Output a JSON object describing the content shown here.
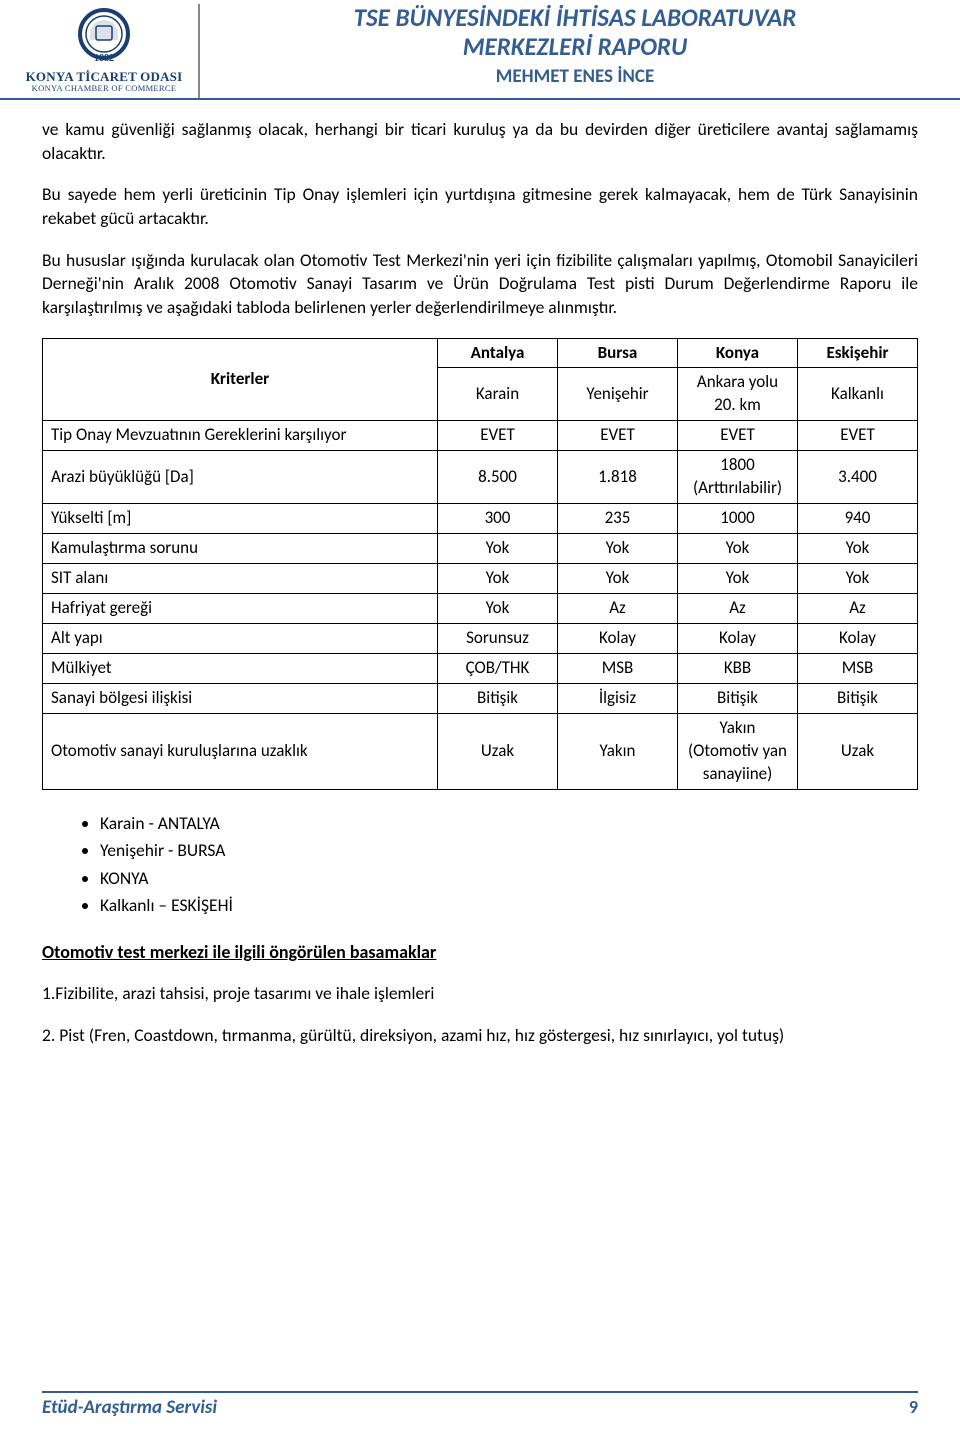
{
  "colors": {
    "accent": "#325e93",
    "text": "#000000",
    "logo_blue": "#1a3e72",
    "border_gray": "#888888",
    "background": "#ffffff"
  },
  "header": {
    "org_name": "KONYA TİCARET ODASI",
    "org_sub_en": "KONYA CHAMBER OF COMMERCE",
    "logo_year": "1882",
    "title_line1": "TSE BÜNYESİNDEKİ İHTİSAS LABORATUVAR",
    "title_line2": "MERKEZLERİ RAPORU",
    "author": "MEHMET ENES İNCE"
  },
  "paragraphs": {
    "p1": "ve kamu güvenliği sağlanmış olacak, herhangi bir ticari kuruluş ya da bu devirden diğer üreticilere avantaj sağlamamış olacaktır.",
    "p2": "Bu sayede hem yerli üreticinin Tip Onay işlemleri için yurtdışına gitmesine gerek kalmayacak, hem de Türk Sanayisinin rekabet gücü artacaktır.",
    "p3": "Bu hususlar ışığında kurulacak olan Otomotiv Test Merkezi'nin  yeri için fizibilite çalışmaları yapılmış, Otomobil Sanayicileri Derneği'nin Aralık 2008 Otomotiv Sanayi Tasarım ve Ürün Doğrulama Test pisti Durum Değerlendirme Raporu ile karşılaştırılmış ve aşağıdaki tabloda belirlenen yerler değerlendirilmeye alınmıştır."
  },
  "table": {
    "corner_label": "Kriterler",
    "cities": [
      "Antalya",
      "Bursa",
      "Konya",
      "Eskişehir"
    ],
    "subplaces": [
      "Karain",
      "Yenişehir",
      "Ankara yolu 20. km",
      "Kalkanlı"
    ],
    "col_align": [
      "center",
      "center",
      "center",
      "center"
    ],
    "rows": [
      {
        "label": "Tip Onay Mevzuatının Gereklerini karşılıyor",
        "cells": [
          "EVET",
          "EVET",
          "EVET",
          "EVET"
        ]
      },
      {
        "label": "Arazi büyüklüğü [Da]",
        "cells": [
          "8.500",
          "1.818",
          "1800 (Arttırılabilir)",
          "3.400"
        ]
      },
      {
        "label": "Yükselti [m]",
        "cells": [
          "300",
          "235",
          "1000",
          "940"
        ]
      },
      {
        "label": "Kamulaştırma sorunu",
        "cells": [
          "Yok",
          "Yok",
          "Yok",
          "Yok"
        ]
      },
      {
        "label": "SIT alanı",
        "cells": [
          "Yok",
          "Yok",
          "Yok",
          "Yok"
        ]
      },
      {
        "label": "Hafriyat gereği",
        "cells": [
          "Yok",
          "Az",
          "Az",
          "Az"
        ]
      },
      {
        "label": "Alt yapı",
        "cells": [
          "Sorunsuz",
          "Kolay",
          "Kolay",
          "Kolay"
        ]
      },
      {
        "label": "Mülkiyet",
        "cells": [
          "ÇOB/THK",
          "MSB",
          "KBB",
          "MSB"
        ]
      },
      {
        "label": "Sanayi bölgesi ilişkisi",
        "cells": [
          "Bitişik",
          "İlgisiz",
          "Bitişik",
          "Bitişik"
        ]
      },
      {
        "label": "Otomotiv sanayi kuruluşlarına uzaklık",
        "cells": [
          "Uzak",
          "Yakın",
          "Yakın (Otomotiv yan sanayiine)",
          "Uzak"
        ]
      }
    ]
  },
  "bullets": [
    "Karain - ANTALYA",
    "Yenişehir - BURSA",
    "KONYA",
    "Kalkanlı – ESKİŞEHİ"
  ],
  "section_sub": "Otomotiv test merkezi ile ilgili öngörülen basamaklar",
  "steps": {
    "s1": "1.Fizibilite, arazi tahsisi, proje tasarımı ve ihale işlemleri",
    "s2": "2. Pist  (Fren, Coastdown,  tırmanma, gürültü, direksiyon, azami hız, hız göstergesi, hız sınırlayıcı, yol tutuş)"
  },
  "footer": {
    "label": "Etüd-Araştırma Servisi",
    "page": "9"
  }
}
